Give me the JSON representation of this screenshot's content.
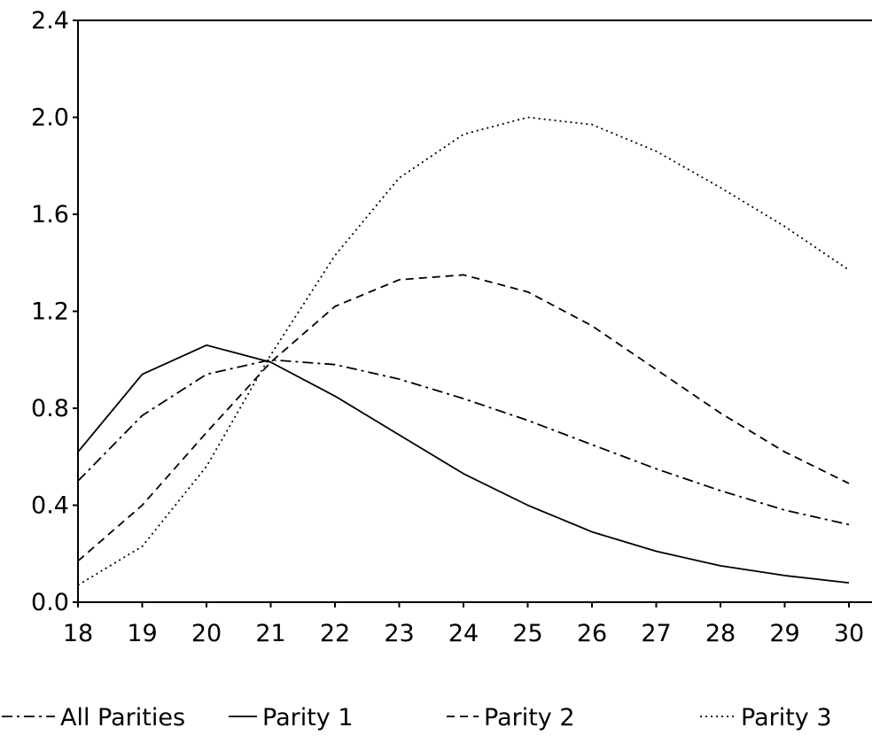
{
  "chart_data": {
    "type": "line",
    "title": "",
    "xlabel": "",
    "ylabel": "",
    "x": [
      18,
      19,
      20,
      21,
      22,
      23,
      24,
      25,
      26,
      27,
      28,
      29,
      30
    ],
    "xticks": [
      "18",
      "19",
      "20",
      "21",
      "22",
      "23",
      "24",
      "25",
      "26",
      "27",
      "28",
      "29",
      "30"
    ],
    "yticks": [
      "0.0",
      "0.4",
      "0.8",
      "1.2",
      "1.6",
      "2.0",
      "2.4"
    ],
    "xlim": [
      18,
      30
    ],
    "ylim": [
      0,
      2.4
    ],
    "grid": false,
    "legend_position": "bottom",
    "series": [
      {
        "name": "All Parities",
        "dash": "dash-dot",
        "values": [
          0.5,
          0.77,
          0.94,
          1.0,
          0.98,
          0.92,
          0.84,
          0.75,
          0.65,
          0.55,
          0.46,
          0.38,
          0.32
        ]
      },
      {
        "name": "Parity 1",
        "dash": "solid",
        "values": [
          0.62,
          0.94,
          1.06,
          0.99,
          0.85,
          0.69,
          0.53,
          0.4,
          0.29,
          0.21,
          0.15,
          0.11,
          0.08
        ]
      },
      {
        "name": "Parity 2",
        "dash": "dashed",
        "values": [
          0.17,
          0.4,
          0.7,
          0.99,
          1.22,
          1.33,
          1.35,
          1.28,
          1.14,
          0.96,
          0.78,
          0.62,
          0.49
        ]
      },
      {
        "name": "Parity 3",
        "dash": "dotted",
        "values": [
          0.07,
          0.23,
          0.56,
          1.02,
          1.43,
          1.75,
          1.93,
          2.0,
          1.97,
          1.86,
          1.71,
          1.55,
          1.37
        ]
      }
    ]
  }
}
